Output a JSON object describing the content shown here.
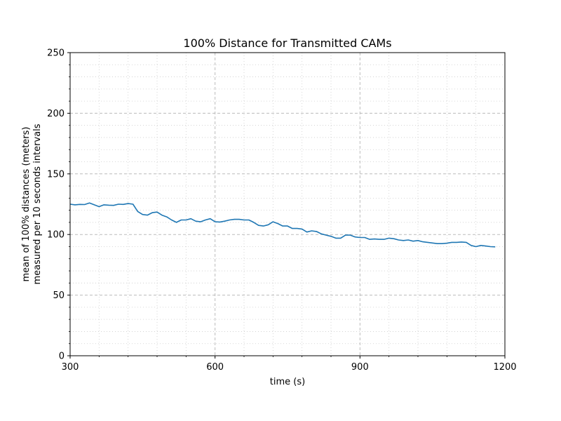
{
  "chart_data": {
    "type": "line",
    "title": "100% Distance for Transmitted CAMs",
    "xlabel": "time (s)",
    "ylabel_lines": [
      "mean of 100% distances (meters)",
      "measured per 10 seconds intervals"
    ],
    "xlim": [
      300,
      1200
    ],
    "ylim": [
      0,
      250
    ],
    "x_ticks": [
      300,
      600,
      900,
      1200
    ],
    "y_ticks": [
      0,
      50,
      100,
      150,
      200,
      250
    ],
    "x_minor_step": 60,
    "y_minor_step": 10,
    "grid": true,
    "series": [
      {
        "color": "#1f77b4",
        "x": [
          300,
          310,
          320,
          330,
          340,
          350,
          360,
          370,
          380,
          390,
          400,
          410,
          420,
          430,
          440,
          450,
          460,
          470,
          480,
          490,
          500,
          510,
          520,
          530,
          540,
          550,
          560,
          570,
          580,
          590,
          600,
          610,
          620,
          630,
          640,
          650,
          660,
          670,
          680,
          690,
          700,
          710,
          720,
          730,
          740,
          750,
          760,
          770,
          780,
          790,
          800,
          810,
          820,
          830,
          840,
          850,
          860,
          870,
          880,
          890,
          900,
          910,
          920,
          930,
          940,
          950,
          960,
          970,
          980,
          990,
          1000,
          1010,
          1020,
          1030,
          1040,
          1050,
          1060,
          1070,
          1080,
          1090,
          1100,
          1110,
          1120,
          1130,
          1140,
          1150,
          1160,
          1170,
          1180
        ],
        "y": [
          125,
          124.5,
          124.8,
          124.7,
          126,
          124.5,
          123,
          124.5,
          124.2,
          124,
          125,
          124.8,
          125.5,
          125,
          119,
          116.5,
          116,
          118,
          118.5,
          116,
          114.5,
          112,
          110,
          112,
          112,
          113,
          111,
          110.5,
          112,
          113,
          110.5,
          110.3,
          111,
          112,
          112.5,
          112.5,
          112,
          112,
          110,
          107.5,
          107,
          108,
          110.5,
          109,
          107,
          107,
          105,
          105,
          104.5,
          102,
          103,
          102.5,
          100.5,
          99.5,
          98.5,
          97,
          97,
          99.5,
          99.5,
          98,
          97.5,
          97.5,
          96,
          96.3,
          96,
          96,
          97,
          96.5,
          95.5,
          95,
          95.5,
          94.5,
          95,
          94,
          93.5,
          93,
          92.5,
          92.5,
          92.8,
          93.5,
          93.5,
          93.8,
          93.5,
          91,
          90,
          91,
          90.5,
          90,
          89.8
        ]
      }
    ]
  }
}
